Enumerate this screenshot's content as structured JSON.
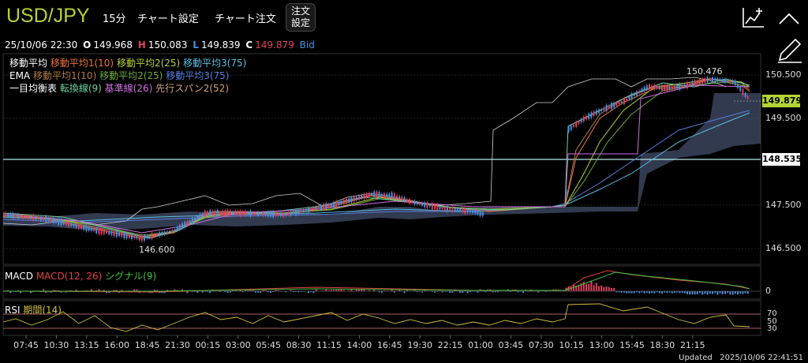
{
  "header": {
    "symbol": "USD/JPY",
    "interval": "15分",
    "chart_settings": "チャート設定",
    "chart_order": "チャート注文",
    "order_settings_line1": "注文",
    "order_settings_line2": "設定"
  },
  "ohlc": {
    "datetime": "25/10/06 22:30",
    "o_label": "O",
    "o_value": "149.968",
    "h_label": "H",
    "h_value": "150.083",
    "l_label": "L",
    "l_value": "149.839",
    "c_label": "C",
    "c_value": "149.879",
    "side": "Bid"
  },
  "legend": {
    "sma_title": "移動平均",
    "sma1": "移動平均1(10)",
    "sma2": "移動平均2(25)",
    "sma3": "移動平均3(75)",
    "ema_title": "EMA",
    "ema1": "移動平均1(10)",
    "ema2": "移動平均2(25)",
    "ema3": "移動平均3(75)",
    "ichi_title": "一目均衡表",
    "tenkan": "転換線(9)",
    "kijun": "基準線(26)",
    "senkou2": "先行スパン2(52)"
  },
  "macd": {
    "title": "MACD",
    "macd": "MACD(12, 26)",
    "signal": "シグナル(9)",
    "zero": "0"
  },
  "rsi": {
    "title": "RSI",
    "period": "期間(14)",
    "l70": "70",
    "l50": "50",
    "l30": "30"
  },
  "price_axis": {
    "ticks": [
      "150.500",
      "149.500",
      "147.500",
      "146.500"
    ],
    "current": "149.879",
    "hline": "148.535",
    "high_label": "150.476",
    "low_label": "146.600"
  },
  "time_axis": [
    "07:45",
    "10:30",
    "13:15",
    "16:00",
    "18:45",
    "21:30",
    "00:15",
    "03:00",
    "05:45",
    "08:30",
    "11:15",
    "14:00",
    "16:45",
    "19:30",
    "22:15",
    "01:00",
    "03:45",
    "07:30",
    "10:15",
    "13:00",
    "15:45",
    "18:30",
    "21:15"
  ],
  "footer": {
    "updated_label": "Updated",
    "updated_time": "2025/10/06  22:41:51"
  },
  "colors": {
    "sma1": "#e8733a",
    "sma2": "#b5d334",
    "sma3": "#5bbde0",
    "ema1": "#b07a4a",
    "ema2": "#6fa83a",
    "ema3": "#5b7fe0",
    "tenkan": "#6fd0a0",
    "kijun": "#d070e0",
    "senkou2": "#d0a080",
    "up": "#e04060",
    "down": "#4a90e0",
    "hline": "#b0e8e8"
  }
}
